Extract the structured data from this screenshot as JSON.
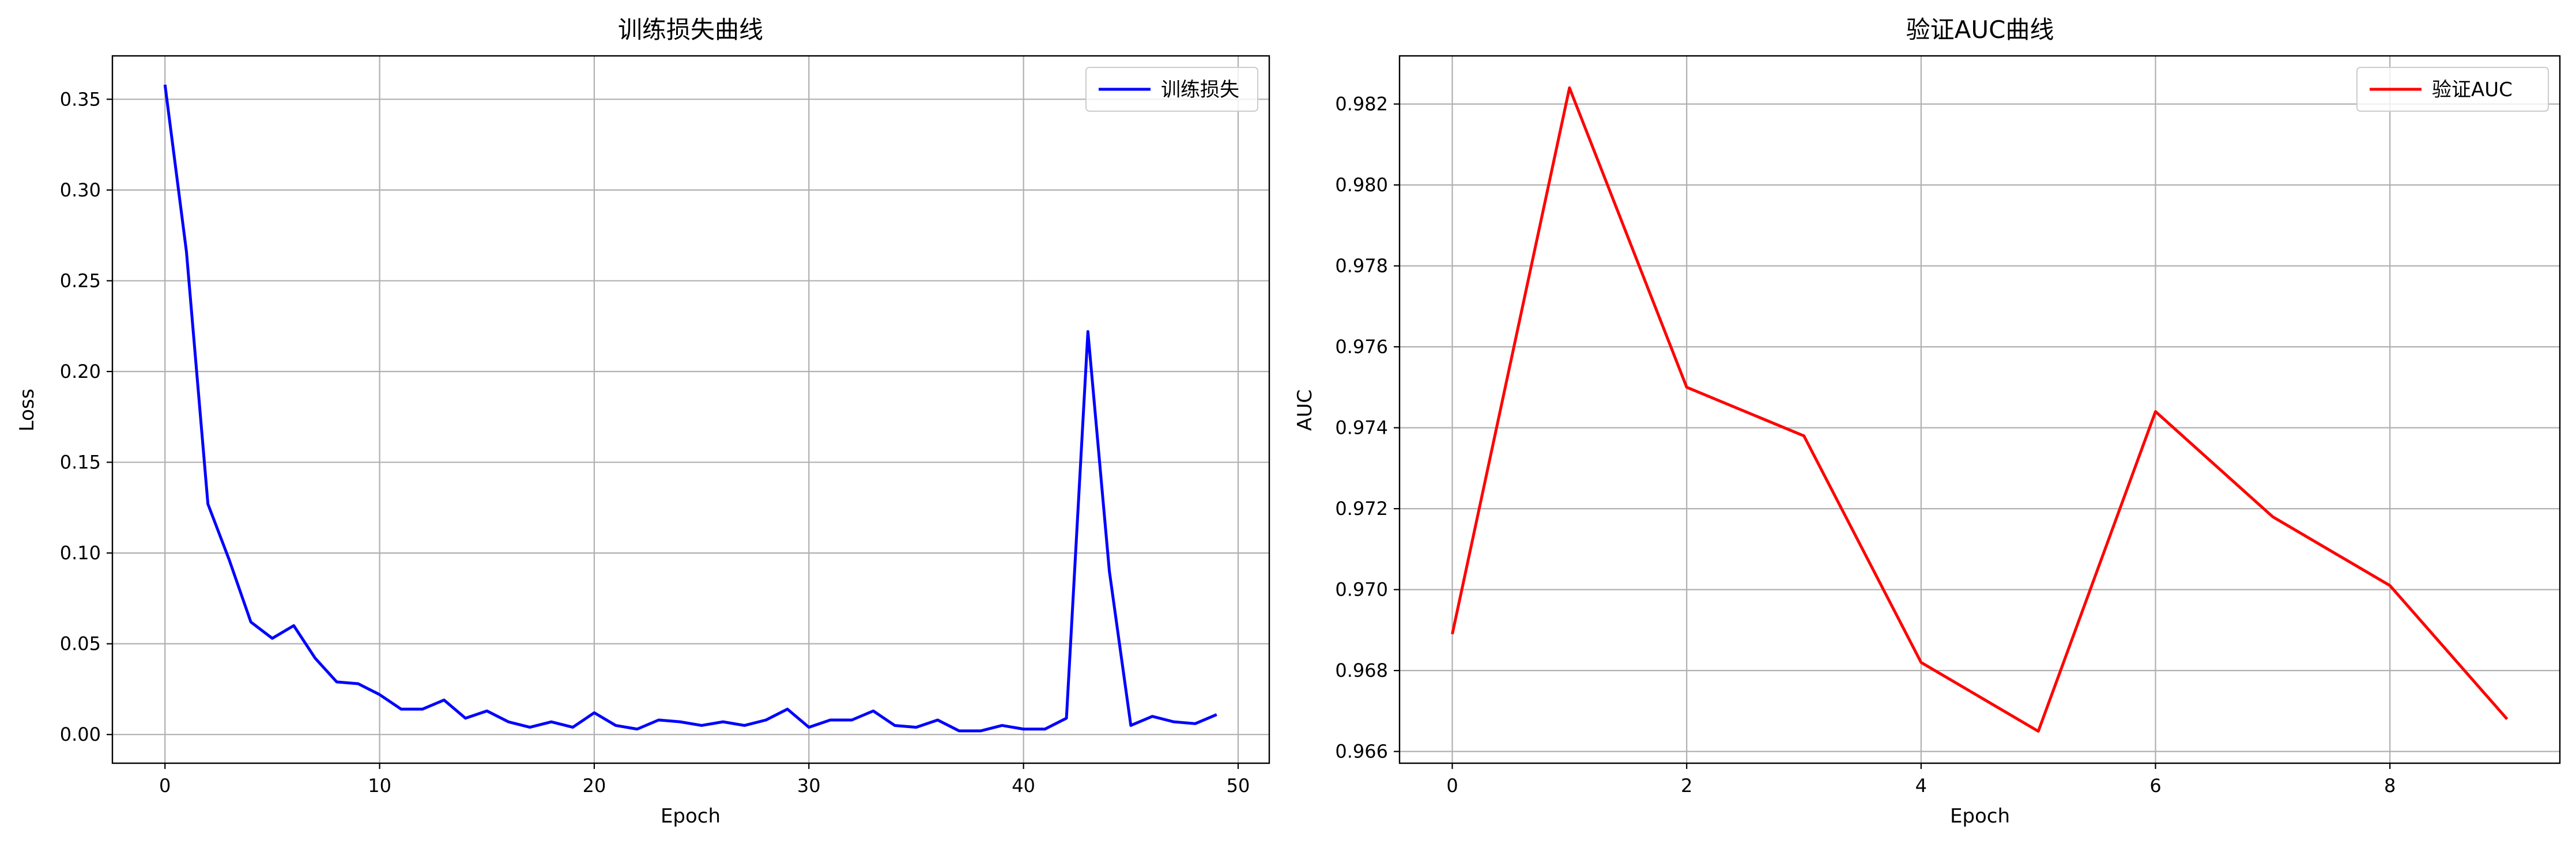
{
  "chart_data": [
    {
      "type": "line",
      "title": "训练损失曲线",
      "xlabel": "Epoch",
      "ylabel": "Loss",
      "xlim": [
        -2.45,
        51.45
      ],
      "ylim": [
        -0.0158,
        0.3739
      ],
      "grid": true,
      "legend_position": "upper right",
      "xticks": [
        0,
        10,
        20,
        30,
        40,
        50
      ],
      "xtick_labels": [
        "0",
        "10",
        "20",
        "30",
        "40",
        "50"
      ],
      "yticks": [
        0.0,
        0.05,
        0.1,
        0.15,
        0.2,
        0.25,
        0.3,
        0.35
      ],
      "ytick_labels": [
        "0.00",
        "0.05",
        "0.10",
        "0.15",
        "0.20",
        "0.25",
        "0.30",
        "0.35"
      ],
      "series": [
        {
          "name": "训练损失",
          "color": "#0000ff",
          "x": [
            0,
            1,
            2,
            3,
            4,
            5,
            6,
            7,
            8,
            9,
            10,
            11,
            12,
            13,
            14,
            15,
            16,
            17,
            18,
            19,
            20,
            21,
            22,
            23,
            24,
            25,
            26,
            27,
            28,
            29,
            30,
            31,
            32,
            33,
            34,
            35,
            36,
            37,
            38,
            39,
            40,
            41,
            42,
            43,
            44,
            45,
            46,
            47,
            48,
            49
          ],
          "y": [
            0.358,
            0.266,
            0.127,
            0.096,
            0.062,
            0.053,
            0.06,
            0.042,
            0.029,
            0.028,
            0.022,
            0.014,
            0.014,
            0.019,
            0.009,
            0.013,
            0.007,
            0.004,
            0.007,
            0.004,
            0.012,
            0.005,
            0.003,
            0.008,
            0.007,
            0.005,
            0.007,
            0.005,
            0.008,
            0.014,
            0.004,
            0.008,
            0.008,
            0.013,
            0.005,
            0.004,
            0.008,
            0.002,
            0.002,
            0.005,
            0.003,
            0.003,
            0.009,
            0.222,
            0.09,
            0.005,
            0.01,
            0.007,
            0.006,
            0.011
          ]
        }
      ]
    },
    {
      "type": "line",
      "title": "验证AUC曲线",
      "xlabel": "Epoch",
      "ylabel": "AUC",
      "xlim": [
        -0.45,
        9.45
      ],
      "ylim": [
        0.96571,
        0.98319
      ],
      "grid": true,
      "legend_position": "upper right",
      "xticks": [
        0,
        2,
        4,
        6,
        8
      ],
      "xtick_labels": [
        "0",
        "2",
        "4",
        "6",
        "8"
      ],
      "yticks": [
        0.966,
        0.968,
        0.97,
        0.972,
        0.974,
        0.976,
        0.978,
        0.98,
        0.982
      ],
      "ytick_labels": [
        "0.966",
        "0.968",
        "0.970",
        "0.972",
        "0.974",
        "0.976",
        "0.978",
        "0.980",
        "0.982"
      ],
      "series": [
        {
          "name": "验证AUC",
          "color": "#ff0000",
          "x": [
            0,
            1,
            2,
            3,
            4,
            5,
            6,
            7,
            8,
            9
          ],
          "y": [
            0.9689,
            0.9824,
            0.975,
            0.9738,
            0.9682,
            0.9665,
            0.9744,
            0.9718,
            0.9701,
            0.9668
          ]
        }
      ]
    }
  ]
}
